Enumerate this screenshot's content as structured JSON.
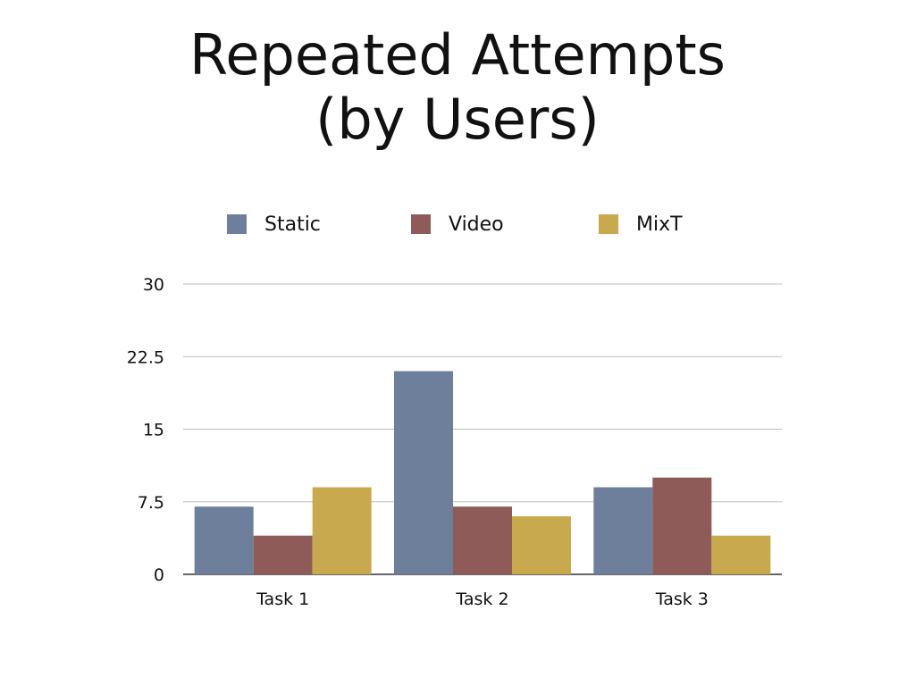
{
  "title_lines": [
    "Repeated Attempts",
    "(by Users)"
  ],
  "chart_data": {
    "type": "bar",
    "categories": [
      "Task 1",
      "Task 2",
      "Task 3"
    ],
    "series": [
      {
        "name": "Static",
        "color": "#6e7f9c",
        "values": [
          7,
          21,
          9
        ]
      },
      {
        "name": "Video",
        "color": "#8e5b58",
        "values": [
          4,
          7,
          10
        ]
      },
      {
        "name": "MixT",
        "color": "#c9a94e",
        "values": [
          9,
          6,
          4
        ]
      }
    ],
    "ylim": [
      0,
      30
    ],
    "yticks": [
      0,
      7.5,
      15,
      22.5,
      30
    ],
    "ytick_labels": [
      "0",
      "7.5",
      "15",
      "22.5",
      "30"
    ],
    "grid": true,
    "legend_position": "top"
  }
}
